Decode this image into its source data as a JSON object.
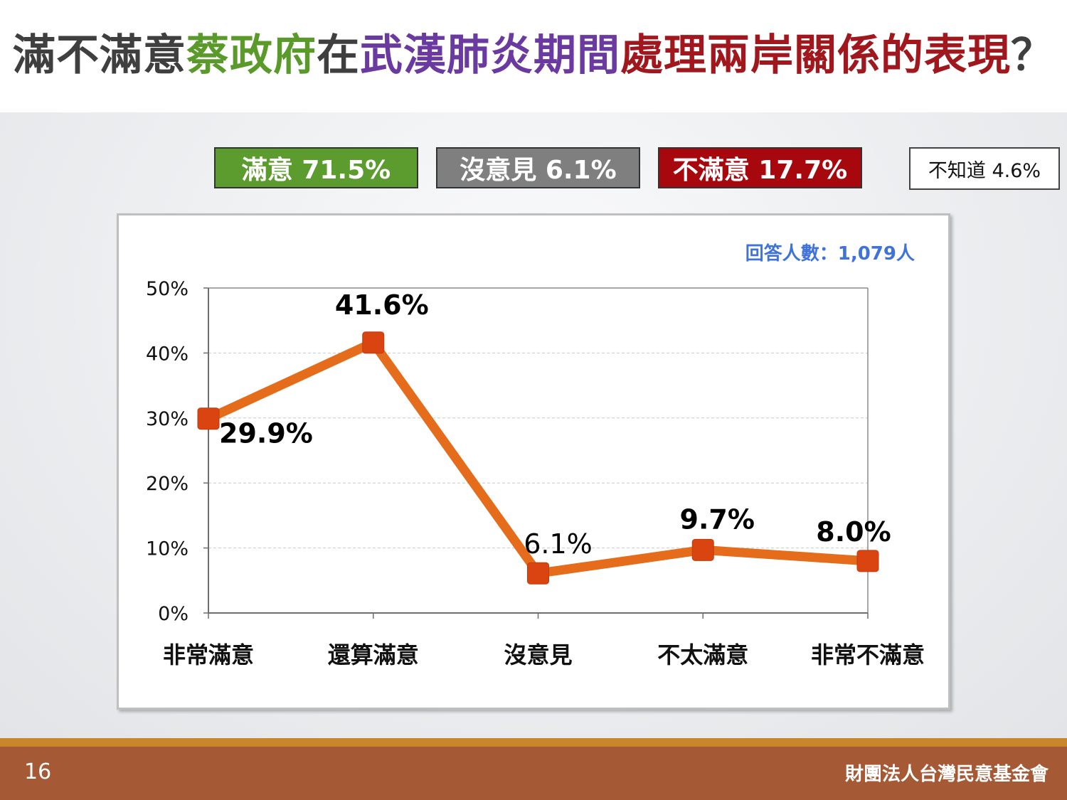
{
  "title": {
    "parts": [
      {
        "text": "滿不滿意",
        "color": "#3f3f3f"
      },
      {
        "text": "蔡政府",
        "color": "#5a9a2b"
      },
      {
        "text": "在",
        "color": "#3f3f3f"
      },
      {
        "text": "武漢肺炎期間",
        "color": "#6a3aa0"
      },
      {
        "text": "處理兩岸關係的表現",
        "color": "#a0181e"
      },
      {
        "text": "？",
        "color": "#3f3f3f"
      }
    ]
  },
  "summary": {
    "satisfied": {
      "label": "滿意 71.5%",
      "color": "#5c9b2e"
    },
    "no_opinion": {
      "label": "沒意見 6.1%",
      "color": "#7f7f7f"
    },
    "dissatisfied": {
      "label": "不滿意 17.7%",
      "color": "#a6080e"
    },
    "dont_know": {
      "label": "不知道 4.6%"
    }
  },
  "respondents": "回答人數：1,079人",
  "chart_data": {
    "type": "line",
    "categories": [
      "非常滿意",
      "還算滿意",
      "沒意見",
      "不太滿意",
      "非常不滿意"
    ],
    "series": [
      {
        "values": [
          29.9,
          41.6,
          6.1,
          9.7,
          8.0
        ],
        "color": "#e46c1a",
        "marker_color": "#d94411"
      }
    ],
    "data_labels": [
      "29.9%",
      "41.6%",
      "6.1%",
      "9.7%",
      "8.0%"
    ],
    "y_ticks": [
      "0%",
      "10%",
      "20%",
      "30%",
      "40%",
      "50%"
    ],
    "ylim": [
      0,
      50
    ],
    "grid": true
  },
  "footer": {
    "page": "16",
    "org": "財團法人台灣民意基金會"
  }
}
